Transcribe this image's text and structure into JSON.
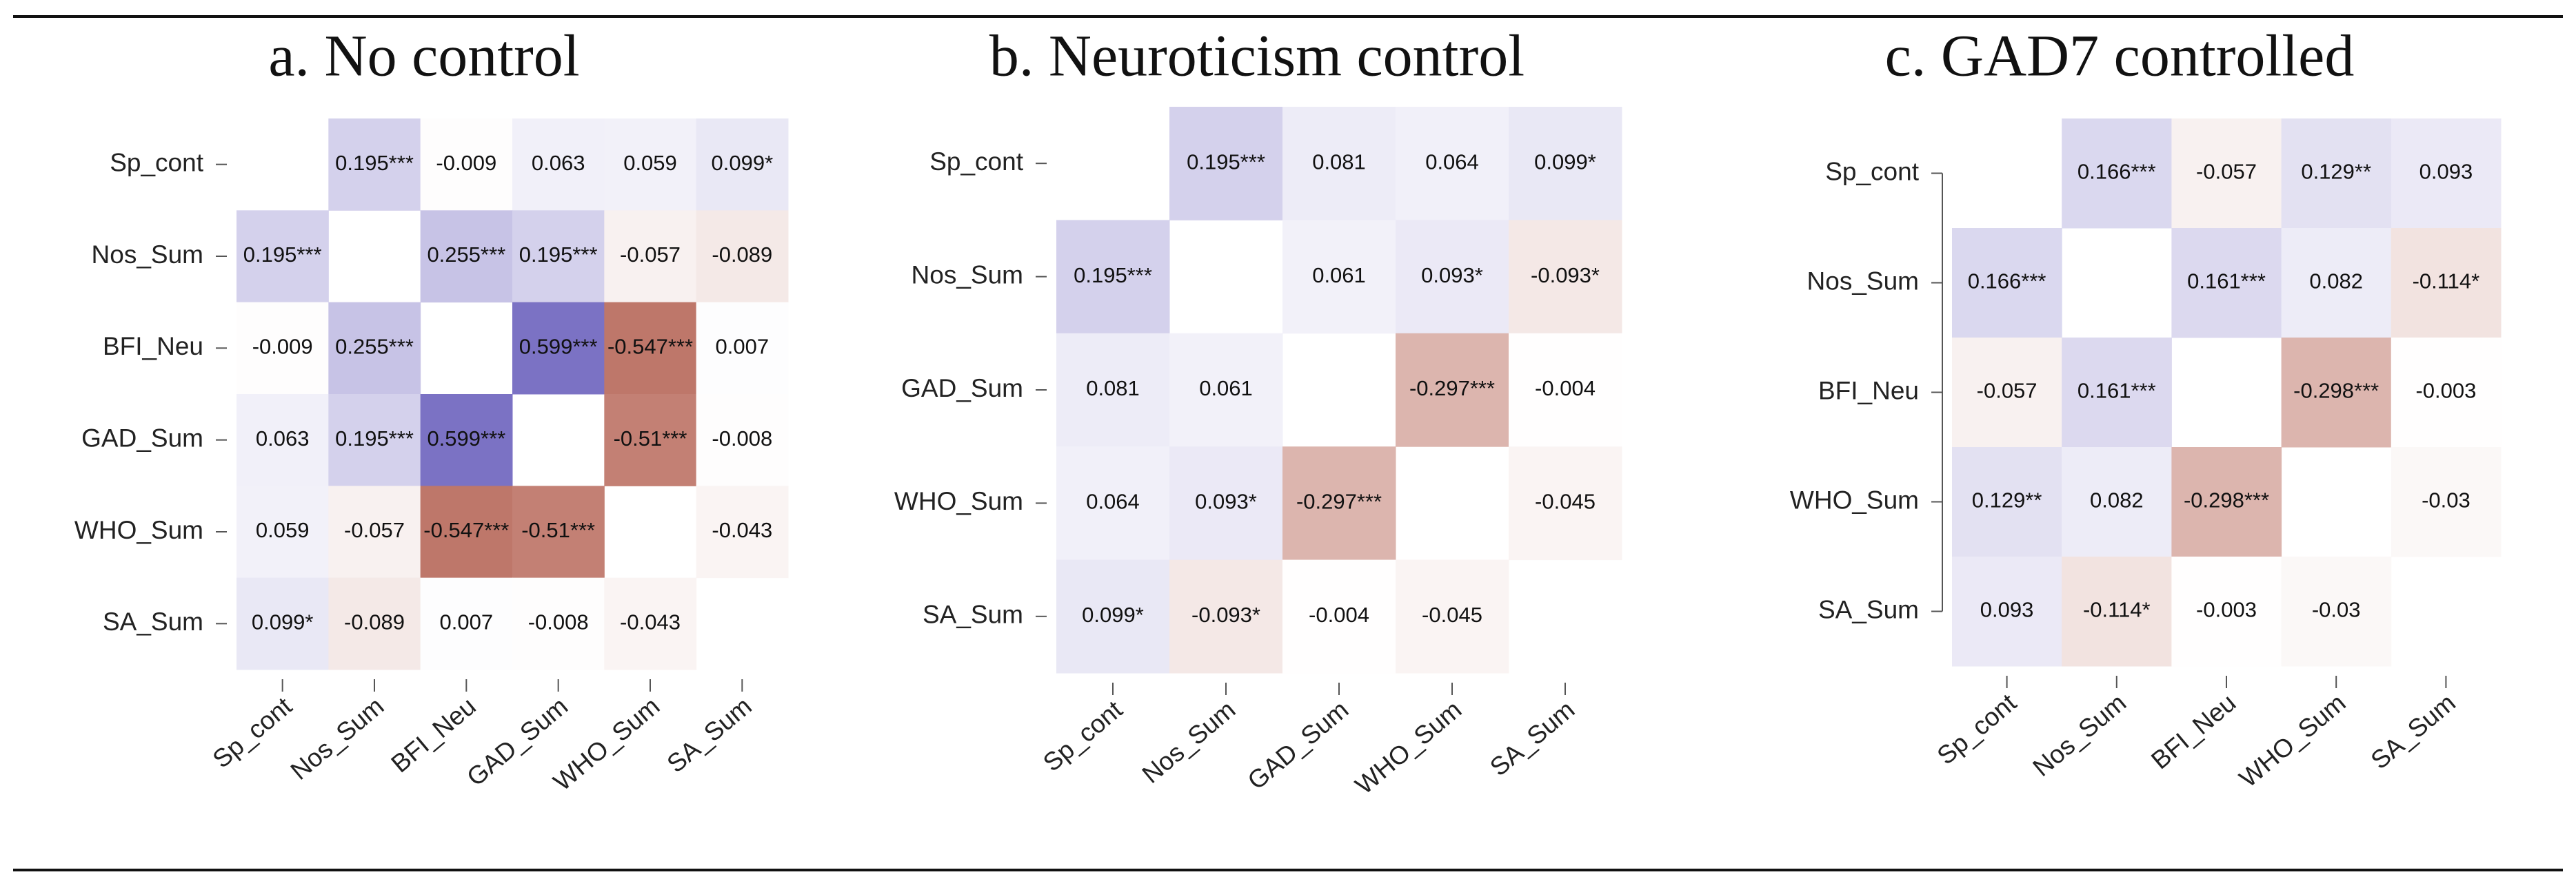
{
  "chart_data": [
    {
      "type": "heatmap",
      "title": "a. No control",
      "categories": [
        "Sp_cont",
        "Nos_Sum",
        "BFI_Neu",
        "GAD_Sum",
        "WHO_Sum",
        "SA_Sum"
      ],
      "values": [
        [
          null,
          0.195,
          -0.009,
          0.063,
          0.059,
          0.099
        ],
        [
          0.195,
          null,
          0.255,
          0.195,
          -0.057,
          -0.089
        ],
        [
          -0.009,
          0.255,
          null,
          0.599,
          -0.547,
          0.007
        ],
        [
          0.063,
          0.195,
          0.599,
          null,
          -0.51,
          -0.008
        ],
        [
          0.059,
          -0.057,
          -0.547,
          -0.51,
          null,
          -0.043
        ],
        [
          0.099,
          -0.089,
          0.007,
          -0.008,
          -0.043,
          null
        ]
      ],
      "value_labels": [
        [
          null,
          "0.195***",
          "-0.009",
          "0.063",
          "0.059",
          "0.099*"
        ],
        [
          "0.195***",
          null,
          "0.255***",
          "0.195***",
          "-0.057",
          "-0.089"
        ],
        [
          "-0.009",
          "0.255***",
          null,
          "0.599***",
          "-0.547***",
          "0.007"
        ],
        [
          "0.063",
          "0.195***",
          "0.599***",
          null,
          "-0.51***",
          "-0.008"
        ],
        [
          "0.059",
          "-0.057",
          "-0.547***",
          "-0.51***",
          null,
          "-0.043"
        ],
        [
          "0.099*",
          "-0.089",
          "0.007",
          "-0.008",
          "-0.043",
          null
        ]
      ],
      "colors": {
        "positive": "#7b72c4",
        "negative": "#b86a5c"
      },
      "color_range": [
        -0.6,
        0.6
      ]
    },
    {
      "type": "heatmap",
      "title": "b. Neuroticism control",
      "categories": [
        "Sp_cont",
        "Nos_Sum",
        "GAD_Sum",
        "WHO_Sum",
        "SA_Sum"
      ],
      "values": [
        [
          null,
          0.195,
          0.081,
          0.064,
          0.099
        ],
        [
          0.195,
          null,
          0.061,
          0.093,
          -0.093
        ],
        [
          0.081,
          0.061,
          null,
          -0.297,
          -0.004
        ],
        [
          0.064,
          0.093,
          -0.297,
          null,
          -0.045
        ],
        [
          0.099,
          -0.093,
          -0.004,
          -0.045,
          null
        ]
      ],
      "value_labels": [
        [
          null,
          "0.195***",
          "0.081",
          "0.064",
          "0.099*"
        ],
        [
          "0.195***",
          null,
          "0.061",
          "0.093*",
          "-0.093*"
        ],
        [
          "0.081",
          "0.061",
          null,
          "-0.297***",
          "-0.004"
        ],
        [
          "0.064",
          "0.093*",
          "-0.297***",
          null,
          "-0.045"
        ],
        [
          "0.099*",
          "-0.093*",
          "-0.004",
          "-0.045",
          null
        ]
      ],
      "colors": {
        "positive": "#7b72c4",
        "negative": "#b86a5c"
      },
      "color_range": [
        -0.6,
        0.6
      ]
    },
    {
      "type": "heatmap",
      "title": "c. GAD7 controlled",
      "categories": [
        "Sp_cont",
        "Nos_Sum",
        "BFI_Neu",
        "WHO_Sum",
        "SA_Sum"
      ],
      "values": [
        [
          null,
          0.166,
          -0.057,
          0.129,
          0.093
        ],
        [
          0.166,
          null,
          0.161,
          0.082,
          -0.114
        ],
        [
          -0.057,
          0.161,
          null,
          -0.298,
          -0.003
        ],
        [
          0.129,
          0.082,
          -0.298,
          null,
          -0.03
        ],
        [
          0.093,
          -0.114,
          -0.003,
          -0.03,
          null
        ]
      ],
      "value_labels": [
        [
          null,
          "0.166***",
          "-0.057",
          "0.129**",
          "0.093"
        ],
        [
          "0.166***",
          null,
          "0.161***",
          "0.082",
          "-0.114*"
        ],
        [
          "-0.057",
          "0.161***",
          null,
          "-0.298***",
          "-0.003"
        ],
        [
          "0.129**",
          "0.082",
          "-0.298***",
          null,
          "-0.03"
        ],
        [
          "0.093",
          "-0.114*",
          "-0.003",
          "-0.03",
          null
        ]
      ],
      "colors": {
        "positive": "#7b72c4",
        "negative": "#b86a5c"
      },
      "color_range": [
        -0.6,
        0.6
      ]
    }
  ]
}
